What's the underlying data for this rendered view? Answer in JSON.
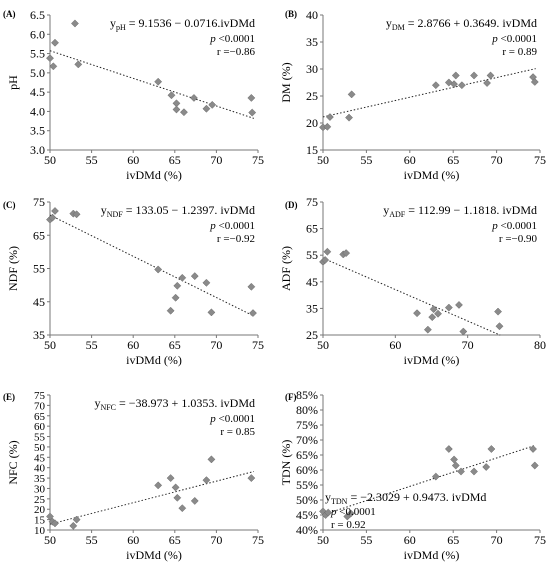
{
  "chart_data": [
    {
      "type": "scatter",
      "panel_label": "(A)",
      "ylabel": "pH",
      "xlabel": "ivDMd (%)",
      "xlim": [
        50,
        75
      ],
      "ylim": [
        3.0,
        6.5
      ],
      "xticks": [
        "50",
        "55",
        "60",
        "65",
        "70",
        "75"
      ],
      "yticks": [
        "3.0",
        "3.5",
        "4.0",
        "4.5",
        "5.0",
        "5.5",
        "6.0",
        "6.5"
      ],
      "xtick_values": [
        50,
        55,
        60,
        65,
        70,
        75
      ],
      "ytick_values": [
        3.0,
        3.5,
        4.0,
        4.5,
        5.0,
        5.5,
        6.0,
        6.5
      ],
      "equation": {
        "prefix": "y",
        "sub": "pH",
        "rest": " = 9.1536 − 0.0716.ivDMd"
      },
      "p_label": "p",
      "p_value": " <0.0001",
      "r_text": "r =−0.86",
      "stats_anchor": "top-right",
      "trend": {
        "slope": -0.0716,
        "intercept": 9.1536,
        "x_range": [
          50,
          74.5
        ]
      },
      "points": [
        {
          "x": 50.0,
          "y": 5.38
        },
        {
          "x": 50.4,
          "y": 5.17
        },
        {
          "x": 50.6,
          "y": 5.78
        },
        {
          "x": 53.0,
          "y": 6.28
        },
        {
          "x": 53.4,
          "y": 5.22
        },
        {
          "x": 63.0,
          "y": 4.77
        },
        {
          "x": 64.6,
          "y": 4.42
        },
        {
          "x": 65.2,
          "y": 4.21
        },
        {
          "x": 65.2,
          "y": 4.05
        },
        {
          "x": 66.1,
          "y": 3.98
        },
        {
          "x": 67.3,
          "y": 4.35
        },
        {
          "x": 68.8,
          "y": 4.07
        },
        {
          "x": 69.5,
          "y": 4.17
        },
        {
          "x": 74.2,
          "y": 4.35
        },
        {
          "x": 74.3,
          "y": 3.97
        }
      ]
    },
    {
      "type": "scatter",
      "panel_label": "(B)",
      "ylabel": "DM (%)",
      "xlabel": "ivDMd (%)",
      "xlim": [
        50,
        75
      ],
      "ylim": [
        15,
        40
      ],
      "xticks": [
        "50",
        "55",
        "60",
        "65",
        "70",
        "75"
      ],
      "yticks": [
        "15",
        "20",
        "25",
        "30",
        "35",
        "40"
      ],
      "xtick_values": [
        50,
        55,
        60,
        65,
        70,
        75
      ],
      "ytick_values": [
        15,
        20,
        25,
        30,
        35,
        40
      ],
      "equation": {
        "prefix": "y",
        "sub": "DM",
        "rest": " = 2.8766 + 0.3649. ivDMd"
      },
      "p_label": "p",
      "p_value": " <0.0001",
      "r_text": "r = 0.89",
      "stats_anchor": "top-right",
      "trend": {
        "slope": 0.3649,
        "intercept": 2.8766,
        "x_range": [
          50,
          74.5
        ]
      },
      "points": [
        {
          "x": 50.0,
          "y": 19.2
        },
        {
          "x": 50.5,
          "y": 19.3
        },
        {
          "x": 50.8,
          "y": 21.1
        },
        {
          "x": 53.0,
          "y": 21.0
        },
        {
          "x": 53.3,
          "y": 25.3
        },
        {
          "x": 63.0,
          "y": 27.0
        },
        {
          "x": 64.5,
          "y": 27.5
        },
        {
          "x": 65.1,
          "y": 27.2
        },
        {
          "x": 65.3,
          "y": 28.8
        },
        {
          "x": 66.0,
          "y": 27.0
        },
        {
          "x": 67.4,
          "y": 28.8
        },
        {
          "x": 68.9,
          "y": 27.4
        },
        {
          "x": 69.3,
          "y": 28.8
        },
        {
          "x": 74.2,
          "y": 28.5
        },
        {
          "x": 74.4,
          "y": 27.6
        }
      ]
    },
    {
      "type": "scatter",
      "panel_label": "(C)",
      "ylabel": "NDF (%)",
      "xlabel": "ivDMd (%)",
      "xlim": [
        50,
        75
      ],
      "ylim": [
        35,
        75
      ],
      "xticks": [
        "50",
        "55",
        "60",
        "65",
        "70",
        "75"
      ],
      "yticks": [
        "35",
        "45",
        "55",
        "65",
        "75"
      ],
      "xtick_values": [
        50,
        55,
        60,
        65,
        70,
        75
      ],
      "ytick_values": [
        35,
        45,
        55,
        65,
        75
      ],
      "equation": {
        "prefix": "y",
        "sub": "NDF",
        "rest": " = 133.05 − 1.2397. ivDMd"
      },
      "p_label": "p",
      "p_value": " <0.0001",
      "r_text": "r =−0.92",
      "stats_anchor": "top-right",
      "trend": {
        "slope": -1.2397,
        "intercept": 133.05,
        "x_range": [
          50,
          74.5
        ]
      },
      "points": [
        {
          "x": 50.0,
          "y": 69.7
        },
        {
          "x": 50.3,
          "y": 70.3
        },
        {
          "x": 50.6,
          "y": 72.3
        },
        {
          "x": 52.8,
          "y": 71.5
        },
        {
          "x": 53.2,
          "y": 71.3
        },
        {
          "x": 63.0,
          "y": 54.7
        },
        {
          "x": 64.5,
          "y": 42.3
        },
        {
          "x": 65.1,
          "y": 46.2
        },
        {
          "x": 65.3,
          "y": 49.8
        },
        {
          "x": 65.9,
          "y": 52.2
        },
        {
          "x": 67.4,
          "y": 52.7
        },
        {
          "x": 68.8,
          "y": 50.7
        },
        {
          "x": 69.4,
          "y": 41.8
        },
        {
          "x": 74.2,
          "y": 49.5
        },
        {
          "x": 74.4,
          "y": 41.6
        }
      ]
    },
    {
      "type": "scatter",
      "panel_label": "(D)",
      "ylabel": "ADF (%)",
      "xlabel": "ivDMd (%)",
      "xlim": [
        50,
        80
      ],
      "ylim": [
        25,
        75
      ],
      "xticks": [
        "50",
        "60",
        "70",
        "80"
      ],
      "yticks": [
        "25",
        "35",
        "45",
        "55",
        "65",
        "75"
      ],
      "xtick_values": [
        50,
        60,
        70,
        80
      ],
      "ytick_values": [
        25,
        35,
        45,
        55,
        65,
        75
      ],
      "equation": {
        "prefix": "y",
        "sub": "ADF",
        "rest": " = 112.99 − 1.1818. ivDMd"
      },
      "p_label": "p",
      "p_value": " <0.0001",
      "r_text": "r =−0.90",
      "stats_anchor": "top-right",
      "trend": {
        "slope": -1.1818,
        "intercept": 112.99,
        "x_range": [
          50,
          74.5
        ]
      },
      "points": [
        {
          "x": 50.0,
          "y": 52.5
        },
        {
          "x": 50.3,
          "y": 53.2
        },
        {
          "x": 50.6,
          "y": 56.3
        },
        {
          "x": 52.8,
          "y": 55.3
        },
        {
          "x": 53.2,
          "y": 55.8
        },
        {
          "x": 63.0,
          "y": 33.2
        },
        {
          "x": 64.5,
          "y": 27.0
        },
        {
          "x": 65.1,
          "y": 31.7
        },
        {
          "x": 65.3,
          "y": 34.7
        },
        {
          "x": 65.9,
          "y": 33.0
        },
        {
          "x": 67.4,
          "y": 35.3
        },
        {
          "x": 68.8,
          "y": 36.3
        },
        {
          "x": 69.4,
          "y": 26.3
        },
        {
          "x": 74.2,
          "y": 33.8
        },
        {
          "x": 74.4,
          "y": 28.3
        }
      ]
    },
    {
      "type": "scatter",
      "panel_label": "(E)",
      "ylabel": "NFC (%)",
      "xlabel": "ivDMd (%)",
      "xlim": [
        50,
        75
      ],
      "ylim": [
        10,
        75
      ],
      "xticks": [
        "50",
        "55",
        "60",
        "65",
        "70",
        "75"
      ],
      "yticks": [
        "10",
        "15",
        "20",
        "25",
        "30",
        "35",
        "40",
        "45",
        "50",
        "55",
        "60",
        "65",
        "70",
        "75"
      ],
      "xtick_values": [
        50,
        55,
        60,
        65,
        70,
        75
      ],
      "ytick_values": [
        10,
        15,
        20,
        25,
        30,
        35,
        40,
        45,
        50,
        55,
        60,
        65,
        70,
        75
      ],
      "equation": {
        "prefix": "y",
        "sub": "NFC",
        "rest": " = −38.973 + 1.0353. ivDMd"
      },
      "p_label": "p",
      "p_value": " <0.0001",
      "r_text": "r = 0.85",
      "stats_anchor": "top-right",
      "trend": {
        "slope": 1.0353,
        "intercept": -38.973,
        "x_range": [
          50,
          74.5
        ]
      },
      "points": [
        {
          "x": 50.0,
          "y": 16.5
        },
        {
          "x": 50.3,
          "y": 14.0
        },
        {
          "x": 50.6,
          "y": 13.2
        },
        {
          "x": 52.8,
          "y": 12.0
        },
        {
          "x": 53.2,
          "y": 15.0
        },
        {
          "x": 63.0,
          "y": 31.5
        },
        {
          "x": 64.5,
          "y": 35.0
        },
        {
          "x": 65.1,
          "y": 30.5
        },
        {
          "x": 65.3,
          "y": 25.5
        },
        {
          "x": 65.9,
          "y": 20.5
        },
        {
          "x": 67.4,
          "y": 24.0
        },
        {
          "x": 68.8,
          "y": 34.0
        },
        {
          "x": 69.4,
          "y": 44.0
        },
        {
          "x": 74.2,
          "y": 35.0
        }
      ]
    },
    {
      "type": "scatter",
      "panel_label": "(F)",
      "ylabel": "TDN (%)",
      "xlabel": "ivDMd (%)",
      "xlim": [
        50,
        75
      ],
      "ylim": [
        40,
        85
      ],
      "xticks": [
        "50",
        "55",
        "60",
        "65",
        "70",
        "75"
      ],
      "yticks": [
        "40%",
        "45%",
        "50%",
        "55%",
        "60%",
        "65%",
        "70%",
        "75%",
        "80%",
        "85%"
      ],
      "xtick_values": [
        50,
        55,
        60,
        65,
        70,
        75
      ],
      "ytick_values": [
        40,
        45,
        50,
        55,
        60,
        65,
        70,
        75,
        80,
        85
      ],
      "equation": {
        "prefix": "y",
        "sub": "TDN",
        "rest": " = −2.3029 + 0.9473. ivDMd"
      },
      "p_label": "p",
      "p_value": " <0.0001",
      "r_text": "r = 0.92",
      "stats_anchor": "bottom-left",
      "trend": {
        "slope": 0.9473,
        "intercept": -2.3029,
        "x_range": [
          50,
          74.5
        ]
      },
      "points": [
        {
          "x": 50.0,
          "y": 46.2
        },
        {
          "x": 50.3,
          "y": 45.0
        },
        {
          "x": 50.6,
          "y": 45.8
        },
        {
          "x": 52.8,
          "y": 44.5
        },
        {
          "x": 53.2,
          "y": 45.5
        },
        {
          "x": 63.0,
          "y": 57.8
        },
        {
          "x": 64.5,
          "y": 67.0
        },
        {
          "x": 65.1,
          "y": 63.5
        },
        {
          "x": 65.3,
          "y": 61.5
        },
        {
          "x": 65.9,
          "y": 59.5
        },
        {
          "x": 67.4,
          "y": 59.5
        },
        {
          "x": 68.8,
          "y": 61.0
        },
        {
          "x": 69.4,
          "y": 67.0
        },
        {
          "x": 74.2,
          "y": 67.0
        },
        {
          "x": 74.4,
          "y": 61.5
        }
      ]
    }
  ]
}
